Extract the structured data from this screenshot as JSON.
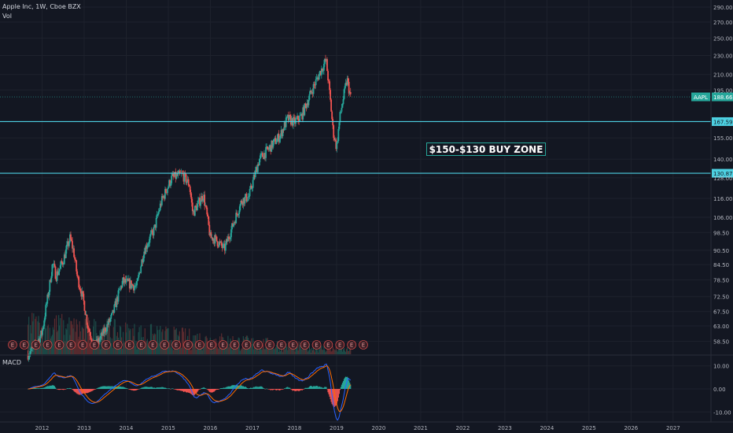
{
  "header": {
    "title": "Apple Inc, 1W, Cboe BZX",
    "volume_label": "Vol"
  },
  "macd": {
    "label": "MACD",
    "ticks": [
      {
        "label": "10.00",
        "value": 10
      },
      {
        "label": "0.00",
        "value": 0
      },
      {
        "label": "-10.00",
        "value": -10
      }
    ],
    "ylim": [
      -14,
      14
    ]
  },
  "annotation": {
    "text": "$150-$130 BUY ZONE"
  },
  "colors": {
    "background": "#131722",
    "up": "#26a69a",
    "down": "#ef5350",
    "level_line": "#4dd0e1",
    "macd_line": "#2962ff",
    "signal_line": "#ff6d00",
    "earnings": "#3a1f26"
  },
  "chart_data": {
    "type": "line",
    "series": [
      {
        "name": "AAPL",
        "x": [
          "2011-09",
          "2011-11",
          "2012-01",
          "2012-03",
          "2012-04",
          "2012-05",
          "2012-07",
          "2012-09",
          "2012-10",
          "2012-11",
          "2013-01",
          "2013-02",
          "2013-04",
          "2013-06",
          "2013-09",
          "2013-12",
          "2014-04",
          "2014-06",
          "2014-09",
          "2014-11",
          "2015-02",
          "2015-05",
          "2015-07",
          "2015-08",
          "2015-11",
          "2016-01",
          "2016-02",
          "2016-05",
          "2016-07",
          "2016-10",
          "2016-12",
          "2017-03",
          "2017-06",
          "2017-09",
          "2017-11",
          "2018-01",
          "2018-03",
          "2018-05",
          "2018-08",
          "2018-10",
          "2018-12",
          "2019-01",
          "2019-02",
          "2019-04",
          "2019-05"
        ],
        "values": [
          55,
          57,
          61,
          75,
          85,
          80,
          86,
          96,
          90,
          80,
          70,
          63,
          57,
          60,
          66,
          78,
          76,
          90,
          100,
          114,
          128,
          130,
          124,
          108,
          118,
          96,
          96,
          91,
          100,
          115,
          117,
          140,
          148,
          157,
          170,
          167,
          172,
          187,
          210,
          225,
          160,
          148,
          172,
          205,
          188
        ]
      }
    ],
    "price_axis": {
      "ticks": [
        "290.00",
        "270.00",
        "250.00",
        "230.00",
        "210.00",
        "195.00",
        "167.59",
        "155.00",
        "140.00",
        "128.00",
        "116.00",
        "106.00",
        "98.50",
        "90.50",
        "84.50",
        "78.50",
        "72.50",
        "67.50",
        "63.00",
        "58.50"
      ],
      "scale": "log",
      "ylim": [
        55,
        300
      ]
    },
    "time_axis": {
      "ticks": [
        "2012",
        "2013",
        "2014",
        "2015",
        "2016",
        "2017",
        "2018",
        "2019",
        "2020",
        "2021",
        "2022",
        "2023",
        "2024",
        "2025",
        "2026",
        "2027"
      ],
      "xlim": [
        2011.0,
        2027.9
      ]
    },
    "last_price": {
      "label": "AAPL",
      "value": "188.66"
    },
    "levels": [
      {
        "value": 167.59,
        "label": "167.59"
      },
      {
        "value": 130.87,
        "label": "130.87"
      }
    ],
    "earnings_markers": {
      "label": "E",
      "count": 31
    },
    "grid": true,
    "legend": "none"
  }
}
